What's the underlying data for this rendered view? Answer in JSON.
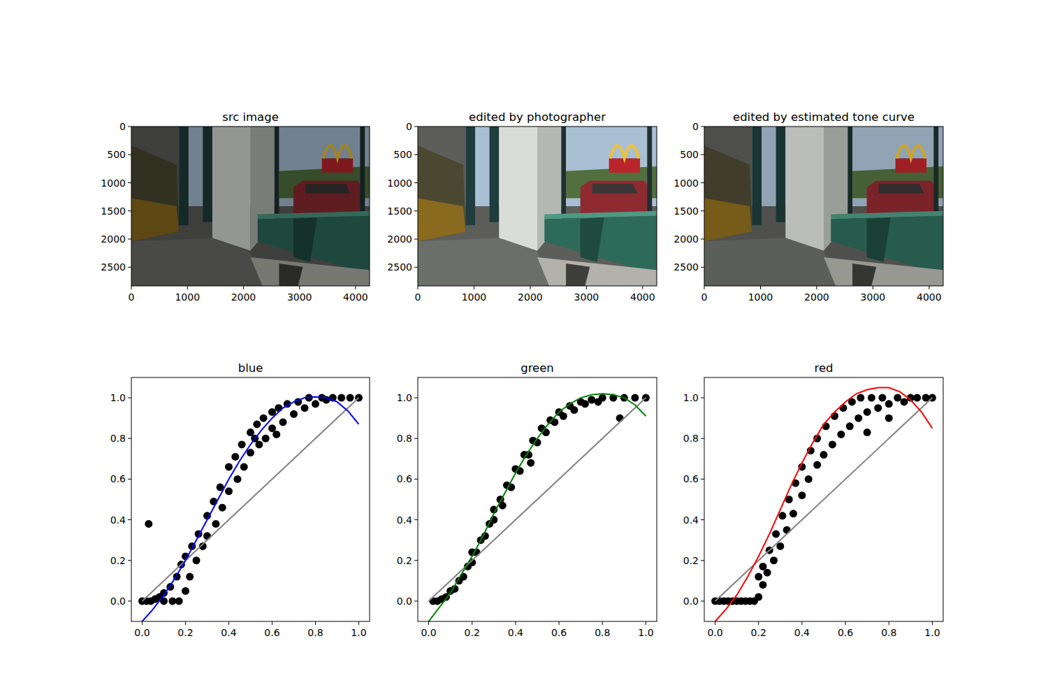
{
  "chart_data": [
    {
      "type": "image",
      "title": "src image",
      "xlim": [
        0,
        4250
      ],
      "ylim": [
        2832,
        0
      ],
      "xticks": [
        0,
        1000,
        2000,
        3000,
        4000
      ],
      "yticks": [
        0,
        500,
        1000,
        1500,
        2000,
        2500
      ]
    },
    {
      "type": "image",
      "title": "edited by photographer",
      "xlim": [
        0,
        4250
      ],
      "ylim": [
        2832,
        0
      ],
      "xticks": [
        0,
        1000,
        2000,
        3000,
        4000
      ],
      "yticks": [
        0,
        500,
        1000,
        1500,
        2000,
        2500
      ]
    },
    {
      "type": "image",
      "title": "edited by estimated tone curve",
      "xlim": [
        0,
        4250
      ],
      "ylim": [
        2832,
        0
      ],
      "xticks": [
        0,
        1000,
        2000,
        3000,
        4000
      ],
      "yticks": [
        0,
        500,
        1000,
        1500,
        2000,
        2500
      ]
    },
    {
      "type": "scatter",
      "title": "blue",
      "xlim": [
        -0.05,
        1.05
      ],
      "ylim": [
        -0.1,
        1.1
      ],
      "xticks": [
        {
          "value": 0,
          "label": "0.0"
        },
        {
          "value": 0.2,
          "label": "0.2"
        },
        {
          "value": 0.4,
          "label": "0.4"
        },
        {
          "value": 0.6,
          "label": "0.6"
        },
        {
          "value": 0.8,
          "label": "0.8"
        },
        {
          "value": 1,
          "label": "1.0"
        }
      ],
      "yticks": [
        {
          "value": 0,
          "label": "0.0"
        },
        {
          "value": 0.2,
          "label": "0.2"
        },
        {
          "value": 0.4,
          "label": "0.4"
        },
        {
          "value": 0.6,
          "label": "0.6"
        },
        {
          "value": 0.8,
          "label": "0.8"
        },
        {
          "value": 1,
          "label": "1.0"
        }
      ],
      "series": [
        {
          "type": "scatter",
          "marker": "o",
          "color": "#000000",
          "x": [
            0,
            0.02,
            0.04,
            0.03,
            0.06,
            0.08,
            0.1,
            0.1,
            0.13,
            0.14,
            0.16,
            0.17,
            0.18,
            0.2,
            0.2,
            0.22,
            0.23,
            0.25,
            0.26,
            0.28,
            0.3,
            0.3,
            0.33,
            0.34,
            0.36,
            0.37,
            0.4,
            0.4,
            0.43,
            0.44,
            0.46,
            0.47,
            0.5,
            0.5,
            0.52,
            0.53,
            0.54,
            0.56,
            0.57,
            0.6,
            0.6,
            0.62,
            0.63,
            0.65,
            0.67,
            0.7,
            0.72,
            0.75,
            0.77,
            0.8,
            0.83,
            0.85,
            0.88,
            0.92,
            0.96,
            1.0
          ],
          "values": [
            0,
            0,
            0,
            0.38,
            0.01,
            0.02,
            0.04,
            0,
            0.07,
            0,
            0.12,
            0,
            0.18,
            0.05,
            0.22,
            0.12,
            0.27,
            0.2,
            0.33,
            0.27,
            0.42,
            0.32,
            0.49,
            0.38,
            0.56,
            0.46,
            0.66,
            0.54,
            0.71,
            0.6,
            0.77,
            0.66,
            0.83,
            0.73,
            0.8,
            0.87,
            0.77,
            0.9,
            0.8,
            0.93,
            0.85,
            0.82,
            0.95,
            0.88,
            0.97,
            0.92,
            0.98,
            0.95,
            1.0,
            0.97,
            1.0,
            0.99,
            1.0,
            1.0,
            1.0,
            1.0
          ]
        },
        {
          "type": "line",
          "line_style": "solid",
          "color": "#808080",
          "x": [
            0,
            1
          ],
          "values": [
            0,
            1
          ]
        },
        {
          "type": "line",
          "line_style": "solid",
          "color": "#0000ff",
          "x": [
            0,
            0.05,
            0.1,
            0.15,
            0.2,
            0.25,
            0.3,
            0.35,
            0.4,
            0.45,
            0.5,
            0.55,
            0.6,
            0.65,
            0.7,
            0.75,
            0.8,
            0.85,
            0.9,
            0.95,
            1.0
          ],
          "values": [
            -0.1,
            -0.04,
            0.03,
            0.11,
            0.2,
            0.3,
            0.4,
            0.5,
            0.6,
            0.69,
            0.77,
            0.84,
            0.9,
            0.95,
            0.98,
            1.0,
            1.005,
            1.0,
            0.98,
            0.935,
            0.87
          ]
        }
      ]
    },
    {
      "type": "scatter",
      "title": "green",
      "xlim": [
        -0.05,
        1.05
      ],
      "ylim": [
        -0.1,
        1.1
      ],
      "xticks": [
        {
          "value": 0,
          "label": "0.0"
        },
        {
          "value": 0.2,
          "label": "0.2"
        },
        {
          "value": 0.4,
          "label": "0.4"
        },
        {
          "value": 0.6,
          "label": "0.6"
        },
        {
          "value": 0.8,
          "label": "0.8"
        },
        {
          "value": 1,
          "label": "1.0"
        }
      ],
      "yticks": [
        {
          "value": 0,
          "label": "0.0"
        },
        {
          "value": 0.2,
          "label": "0.2"
        },
        {
          "value": 0.4,
          "label": "0.4"
        },
        {
          "value": 0.6,
          "label": "0.6"
        },
        {
          "value": 0.8,
          "label": "0.8"
        },
        {
          "value": 1,
          "label": "1.0"
        }
      ],
      "series": [
        {
          "type": "scatter",
          "marker": "o",
          "color": "#000000",
          "x": [
            0.02,
            0.04,
            0.06,
            0.08,
            0.1,
            0.12,
            0.14,
            0.16,
            0.18,
            0.2,
            0.2,
            0.22,
            0.24,
            0.26,
            0.28,
            0.3,
            0.3,
            0.33,
            0.34,
            0.36,
            0.38,
            0.4,
            0.42,
            0.44,
            0.46,
            0.48,
            0.5,
            0.52,
            0.54,
            0.56,
            0.58,
            0.6,
            0.62,
            0.65,
            0.67,
            0.7,
            0.72,
            0.75,
            0.78,
            0.8,
            0.85,
            0.88,
            0.9,
            0.95,
            1.0,
            0.47
          ],
          "values": [
            0,
            0,
            0.01,
            0.02,
            0.05,
            0.06,
            0.1,
            0.12,
            0.17,
            0.19,
            0.24,
            0.24,
            0.3,
            0.32,
            0.38,
            0.4,
            0.45,
            0.5,
            0.47,
            0.57,
            0.56,
            0.65,
            0.64,
            0.72,
            0.72,
            0.79,
            0.78,
            0.85,
            0.83,
            0.89,
            0.88,
            0.93,
            0.91,
            0.96,
            0.94,
            0.98,
            0.97,
            0.99,
            0.98,
            1.0,
            1.0,
            0.9,
            1.0,
            1.0,
            1.0,
            0.68
          ]
        },
        {
          "type": "line",
          "line_style": "solid",
          "color": "#808080",
          "x": [
            0,
            1
          ],
          "values": [
            0,
            1
          ]
        },
        {
          "type": "line",
          "line_style": "solid",
          "color": "#008000",
          "x": [
            0,
            0.05,
            0.1,
            0.15,
            0.2,
            0.25,
            0.3,
            0.35,
            0.4,
            0.45,
            0.5,
            0.55,
            0.6,
            0.65,
            0.7,
            0.75,
            0.8,
            0.85,
            0.9,
            0.95,
            1.0
          ],
          "values": [
            -0.1,
            -0.03,
            0.04,
            0.13,
            0.22,
            0.32,
            0.43,
            0.53,
            0.63,
            0.72,
            0.8,
            0.87,
            0.93,
            0.97,
            1.0,
            1.015,
            1.02,
            1.015,
            1.0,
            0.965,
            0.91
          ]
        }
      ]
    },
    {
      "type": "scatter",
      "title": "red",
      "xlim": [
        -0.05,
        1.05
      ],
      "ylim": [
        -0.1,
        1.1
      ],
      "xticks": [
        {
          "value": 0,
          "label": "0.0"
        },
        {
          "value": 0.2,
          "label": "0.2"
        },
        {
          "value": 0.4,
          "label": "0.4"
        },
        {
          "value": 0.6,
          "label": "0.6"
        },
        {
          "value": 0.8,
          "label": "0.8"
        },
        {
          "value": 1,
          "label": "1.0"
        }
      ],
      "yticks": [
        {
          "value": 0,
          "label": "0.0"
        },
        {
          "value": 0.2,
          "label": "0.2"
        },
        {
          "value": 0.4,
          "label": "0.4"
        },
        {
          "value": 0.6,
          "label": "0.6"
        },
        {
          "value": 0.8,
          "label": "0.8"
        },
        {
          "value": 1,
          "label": "1.0"
        }
      ],
      "series": [
        {
          "type": "scatter",
          "marker": "o",
          "color": "#000000",
          "x": [
            0,
            0.02,
            0.04,
            0.06,
            0.08,
            0.1,
            0.12,
            0.14,
            0.16,
            0.18,
            0.2,
            0.2,
            0.22,
            0.22,
            0.24,
            0.25,
            0.27,
            0.28,
            0.3,
            0.31,
            0.33,
            0.34,
            0.36,
            0.37,
            0.4,
            0.4,
            0.43,
            0.44,
            0.47,
            0.47,
            0.5,
            0.51,
            0.54,
            0.55,
            0.58,
            0.59,
            0.62,
            0.63,
            0.66,
            0.67,
            0.7,
            0.7,
            0.72,
            0.75,
            0.77,
            0.8,
            0.8,
            0.84,
            0.87,
            0.9,
            0.93,
            0.97,
            1.0
          ],
          "values": [
            0,
            0,
            0,
            0,
            0,
            0,
            0,
            0,
            0,
            0,
            0.02,
            0.12,
            0.08,
            0.17,
            0.14,
            0.25,
            0.2,
            0.33,
            0.27,
            0.42,
            0.35,
            0.5,
            0.43,
            0.58,
            0.52,
            0.66,
            0.6,
            0.74,
            0.67,
            0.8,
            0.72,
            0.86,
            0.77,
            0.91,
            0.82,
            0.95,
            0.86,
            0.98,
            0.9,
            1.0,
            0.93,
            0.83,
            1.0,
            0.95,
            1.0,
            0.97,
            0.9,
            1.0,
            0.98,
            1.0,
            1.0,
            1.0,
            1.0
          ]
        },
        {
          "type": "line",
          "line_style": "solid",
          "color": "#808080",
          "x": [
            0,
            1
          ],
          "values": [
            0,
            1
          ]
        },
        {
          "type": "line",
          "line_style": "solid",
          "color": "#ff0000",
          "x": [
            0,
            0.05,
            0.1,
            0.15,
            0.2,
            0.25,
            0.3,
            0.35,
            0.4,
            0.45,
            0.5,
            0.55,
            0.6,
            0.65,
            0.7,
            0.75,
            0.8,
            0.85,
            0.9,
            0.95,
            1.0
          ],
          "values": [
            -0.1,
            -0.04,
            0.03,
            0.12,
            0.22,
            0.33,
            0.45,
            0.57,
            0.68,
            0.78,
            0.87,
            0.93,
            0.98,
            1.02,
            1.04,
            1.05,
            1.05,
            1.03,
            0.99,
            0.93,
            0.85
          ]
        }
      ]
    }
  ]
}
